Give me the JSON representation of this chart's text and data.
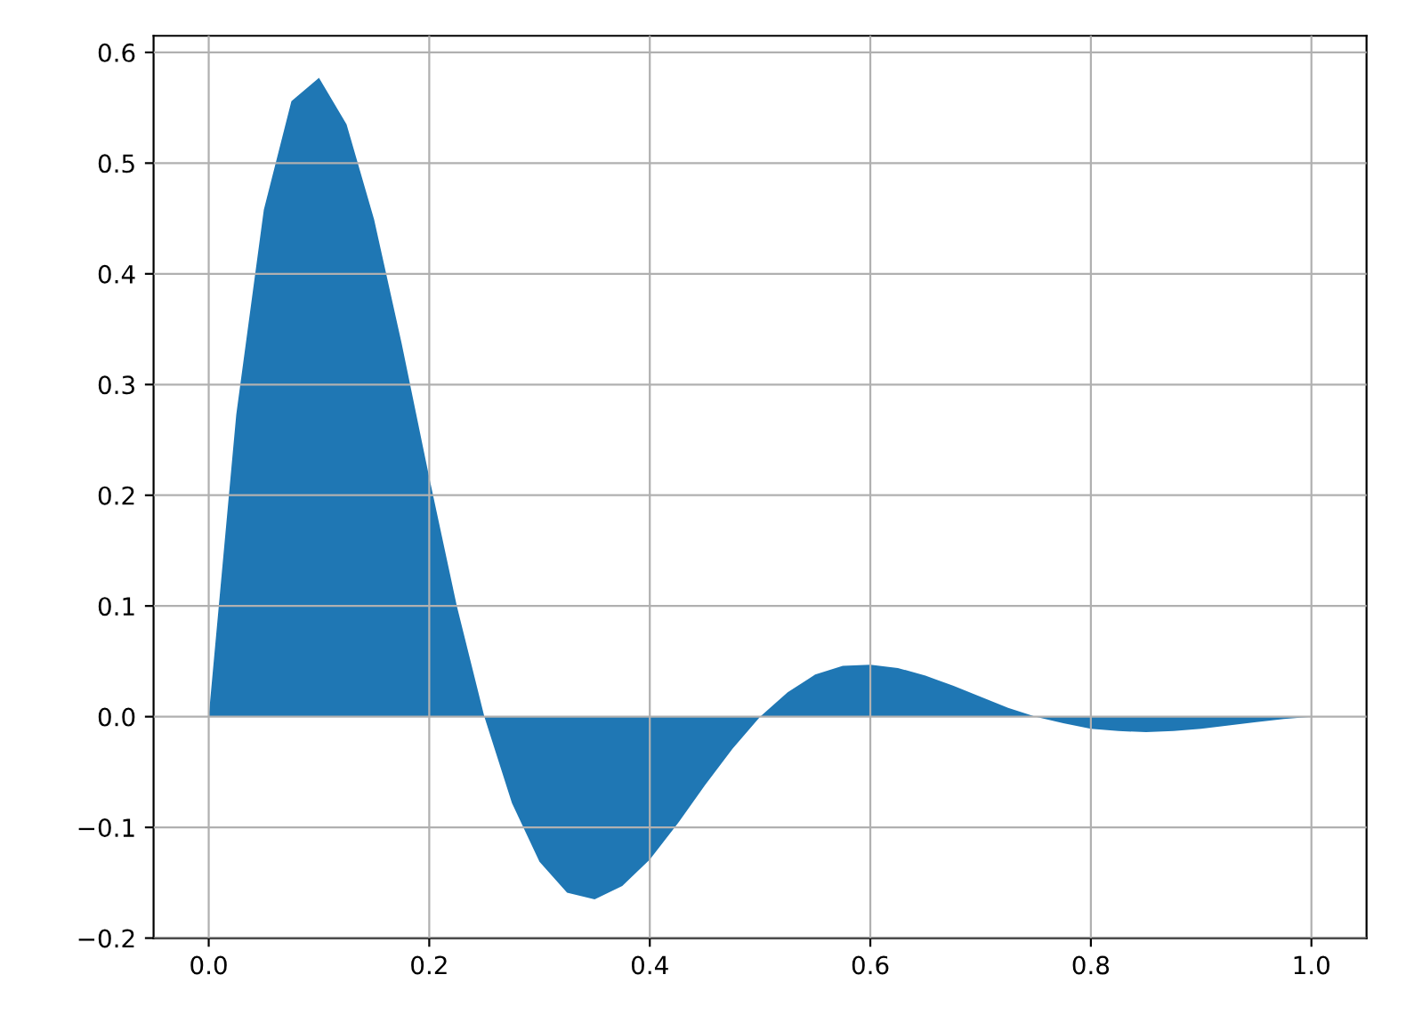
{
  "chart_data": {
    "type": "area",
    "color": "#1f77b4",
    "grid": true,
    "x": [
      0,
      0.025,
      0.05,
      0.075,
      0.1,
      0.125,
      0.15,
      0.175,
      0.2,
      0.225,
      0.25,
      0.275,
      0.3,
      0.325,
      0.35,
      0.375,
      0.4,
      0.425,
      0.45,
      0.475,
      0.5,
      0.525,
      0.55,
      0.575,
      0.6,
      0.625,
      0.65,
      0.675,
      0.7,
      0.725,
      0.75,
      0.775,
      0.8,
      0.825,
      0.85,
      0.875,
      0.9,
      0.925,
      0.95,
      0.975,
      1.0
    ],
    "values": [
      0,
      0.273,
      0.458,
      0.556,
      0.577,
      0.535,
      0.449,
      0.337,
      0.216,
      0.1,
      0,
      -0.078,
      -0.131,
      -0.159,
      -0.165,
      -0.153,
      -0.129,
      -0.097,
      -0.062,
      -0.029,
      0,
      0.022,
      0.038,
      0.046,
      0.047,
      0.044,
      0.037,
      0.028,
      0.018,
      0.008,
      0,
      -0.006,
      -0.011,
      -0.013,
      -0.014,
      -0.013,
      -0.011,
      -0.008,
      -0.005,
      -0.002,
      0
    ],
    "xlim": [
      -0.05,
      1.05
    ],
    "ylim": [
      -0.2,
      0.615
    ],
    "xticks": [
      {
        "value": 0,
        "label": "0.0"
      },
      {
        "value": 0.2,
        "label": "0.2"
      },
      {
        "value": 0.4,
        "label": "0.4"
      },
      {
        "value": 0.6,
        "label": "0.6"
      },
      {
        "value": 0.8,
        "label": "0.8"
      },
      {
        "value": 1.0,
        "label": "1.0"
      }
    ],
    "yticks": [
      {
        "value": -0.2,
        "label": "−0.2"
      },
      {
        "value": -0.1,
        "label": "−0.1"
      },
      {
        "value": 0,
        "label": "0.0"
      },
      {
        "value": 0.1,
        "label": "0.1"
      },
      {
        "value": 0.2,
        "label": "0.2"
      },
      {
        "value": 0.3,
        "label": "0.3"
      },
      {
        "value": 0.4,
        "label": "0.4"
      },
      {
        "value": 0.5,
        "label": "0.5"
      },
      {
        "value": 0.6,
        "label": "0.6"
      }
    ]
  }
}
